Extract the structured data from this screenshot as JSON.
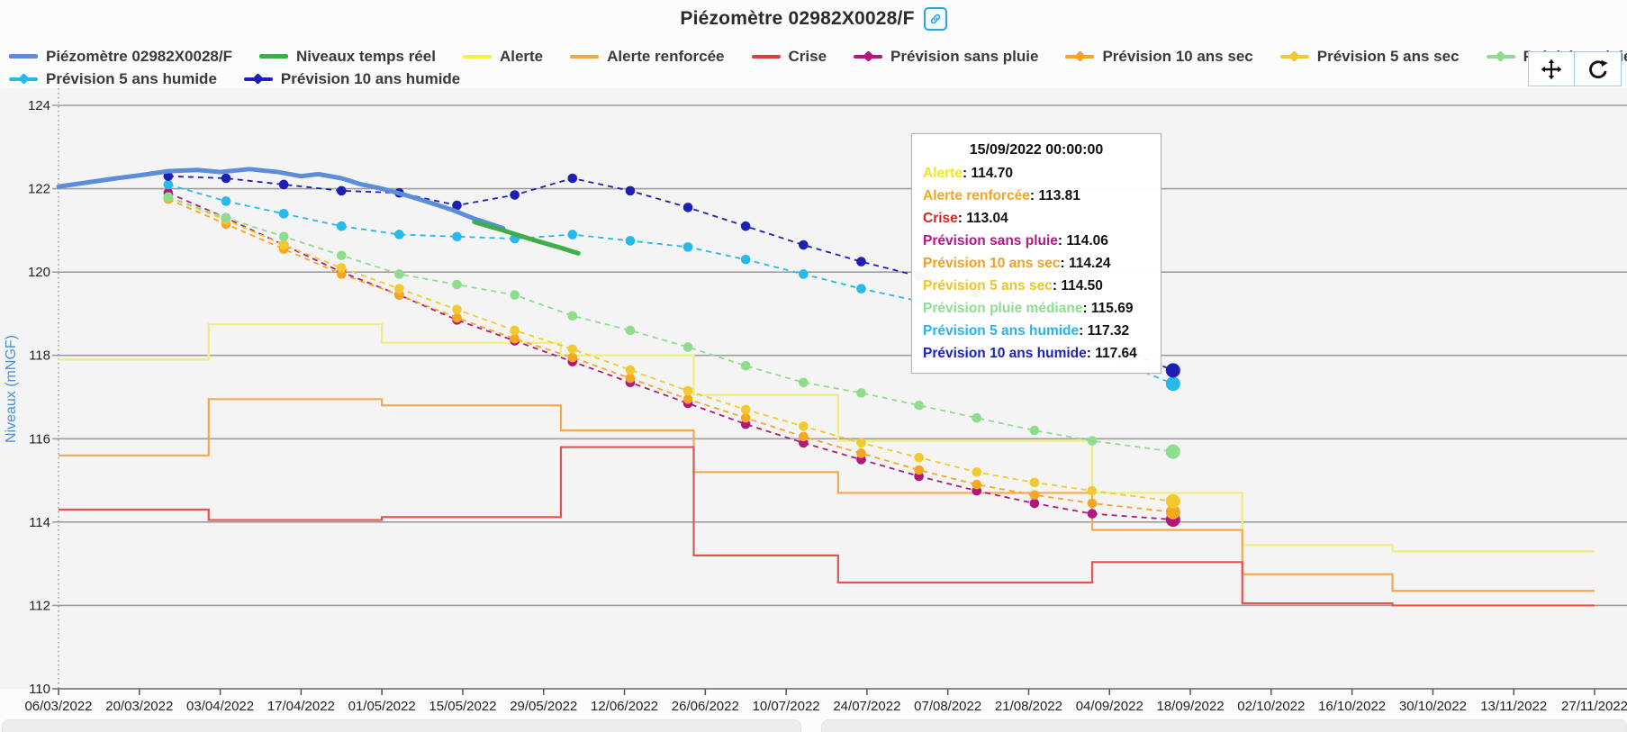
{
  "header": {
    "title": "Piézomètre 02982X0028/F"
  },
  "legend": {
    "rows": [
      [
        {
          "label": "Piézomètre 02982X0028/F",
          "color": "#5b8dd9",
          "swatch": "thick-line"
        },
        {
          "label": "Niveaux temps réel",
          "color": "#3fae49",
          "swatch": "thick-line"
        },
        {
          "label": "Alerte",
          "color": "#f3f33c",
          "swatch": "line"
        },
        {
          "label": "Alerte renforcée",
          "color": "#f2a93b",
          "swatch": "line"
        },
        {
          "label": "Crise",
          "color": "#e23b3b",
          "swatch": "line"
        },
        {
          "label": "Prévision sans pluie",
          "color": "#b01880",
          "swatch": "line-marker"
        },
        {
          "label": "Prévision 10 ans sec",
          "color": "#f6a623",
          "swatch": "line-marker"
        },
        {
          "label": "Prévision 5 ans sec",
          "color": "#f2c92f",
          "swatch": "line-marker"
        },
        {
          "label": "Prévision pluie médiane",
          "color": "#8fdc8f",
          "swatch": "line-marker"
        }
      ],
      [
        {
          "label": "Prévision 5 ans humide",
          "color": "#27b9ea",
          "swatch": "line-marker"
        },
        {
          "label": "Prévision 10 ans humide",
          "color": "#1f1fb4",
          "swatch": "line-marker"
        }
      ]
    ]
  },
  "modebar": {
    "buttons": [
      {
        "name": "pan",
        "label": "Pan"
      },
      {
        "name": "reset",
        "label": "Reset view"
      }
    ]
  },
  "tooltip": {
    "title": "15/09/2022 00:00:00",
    "rows": [
      {
        "label": "Alerte",
        "value": "114.70",
        "color": "#f0e714"
      },
      {
        "label": "Alerte renforcée",
        "value": "113.81",
        "color": "#f5a623"
      },
      {
        "label": "Crise",
        "value": "113.04",
        "color": "#e02020"
      },
      {
        "label": "Prévision sans pluie",
        "value": "114.06",
        "color": "#b0188a"
      },
      {
        "label": "Prévision 10 ans sec",
        "value": "114.24",
        "color": "#f0a028"
      },
      {
        "label": "Prévision 5 ans sec",
        "value": "114.50",
        "color": "#ecc626"
      },
      {
        "label": "Prévision pluie médiane",
        "value": "115.69",
        "color": "#90dc90"
      },
      {
        "label": "Prévision 5 ans humide",
        "value": "117.32",
        "color": "#28b4e8"
      },
      {
        "label": "Prévision 10 ans humide",
        "value": "117.64",
        "color": "#1e22b4"
      }
    ]
  },
  "chart_data": {
    "type": "line",
    "title": "Piézomètre 02982X0028/F",
    "ylabel": "Niveaux (mNGF)",
    "ylim": [
      110,
      124
    ],
    "y_ticks": [
      124,
      122,
      120,
      118,
      116,
      114,
      112,
      110
    ],
    "x_unit": "days since 06/03/2022",
    "x_tick_labels": [
      "06/03/2022",
      "20/03/2022",
      "03/04/2022",
      "17/04/2022",
      "01/05/2022",
      "15/05/2022",
      "29/05/2022",
      "12/06/2022",
      "26/06/2022",
      "10/07/2022",
      "24/07/2022",
      "07/08/2022",
      "21/08/2022",
      "04/09/2022",
      "18/09/2022",
      "02/10/2022",
      "16/10/2022",
      "30/10/2022",
      "13/11/2022",
      "27/11/2022"
    ],
    "x_tick_days": [
      0,
      14,
      28,
      42,
      56,
      70,
      84,
      98,
      112,
      126,
      140,
      154,
      168,
      182,
      196,
      210,
      224,
      238,
      252,
      266
    ],
    "grid": true,
    "legend_position": "top-left",
    "hover_day": 193,
    "series": [
      {
        "name": "Alerte",
        "type": "step",
        "color": "#eeee7e",
        "segments": [
          [
            0,
            26,
            117.9
          ],
          [
            26,
            56,
            118.75
          ],
          [
            56,
            87,
            118.3
          ],
          [
            87,
            110,
            118.0
          ],
          [
            110,
            135,
            117.05
          ],
          [
            135,
            179,
            115.95
          ],
          [
            179,
            205,
            114.7
          ],
          [
            205,
            231,
            113.45
          ],
          [
            231,
            266,
            113.3
          ]
        ]
      },
      {
        "name": "Alerte renforcée",
        "type": "step",
        "color": "#f3a94e",
        "segments": [
          [
            0,
            26,
            115.6
          ],
          [
            26,
            56,
            116.95
          ],
          [
            56,
            87,
            116.8
          ],
          [
            87,
            110,
            116.2
          ],
          [
            110,
            135,
            115.2
          ],
          [
            135,
            179,
            114.7
          ],
          [
            179,
            205,
            113.81
          ],
          [
            205,
            231,
            112.75
          ],
          [
            231,
            266,
            112.35
          ]
        ]
      },
      {
        "name": "Crise",
        "type": "step",
        "color": "#e25555",
        "segments": [
          [
            0,
            26,
            114.3
          ],
          [
            26,
            56,
            114.05
          ],
          [
            56,
            87,
            114.12
          ],
          [
            87,
            110,
            115.8
          ],
          [
            110,
            135,
            113.2
          ],
          [
            135,
            179,
            112.55
          ],
          [
            179,
            205,
            113.04
          ],
          [
            205,
            231,
            112.05
          ],
          [
            231,
            266,
            112.0
          ]
        ]
      },
      {
        "name": "Prévision sans pluie",
        "type": "forecast",
        "color": "#b01880",
        "x": [
          19,
          29,
          39,
          49,
          59,
          69,
          79,
          89,
          99,
          109,
          119,
          129,
          139,
          149,
          159,
          169,
          179
        ],
        "y": [
          121.9,
          121.3,
          120.65,
          120.0,
          119.45,
          118.85,
          118.35,
          117.85,
          117.35,
          116.85,
          116.35,
          115.9,
          115.5,
          115.1,
          114.75,
          114.45,
          114.2
        ],
        "final": {
          "x": 193,
          "y": 114.06
        }
      },
      {
        "name": "Prévision 10 ans sec",
        "type": "forecast",
        "color": "#f6a623",
        "x": [
          19,
          29,
          39,
          49,
          59,
          69,
          79,
          89,
          99,
          109,
          119,
          129,
          139,
          149,
          159,
          169,
          179
        ],
        "y": [
          121.75,
          121.15,
          120.55,
          119.95,
          119.45,
          118.9,
          118.4,
          117.95,
          117.45,
          116.95,
          116.5,
          116.05,
          115.65,
          115.25,
          114.9,
          114.65,
          114.45
        ],
        "final": {
          "x": 193,
          "y": 114.24
        }
      },
      {
        "name": "Prévision 5 ans sec",
        "type": "forecast",
        "color": "#f2c92f",
        "x": [
          19,
          29,
          39,
          49,
          59,
          69,
          79,
          89,
          99,
          109,
          119,
          129,
          139,
          149,
          159,
          169,
          179
        ],
        "y": [
          121.8,
          121.25,
          120.65,
          120.1,
          119.6,
          119.1,
          118.6,
          118.15,
          117.65,
          117.15,
          116.7,
          116.3,
          115.9,
          115.55,
          115.2,
          114.95,
          114.75
        ],
        "final": {
          "x": 193,
          "y": 114.5
        }
      },
      {
        "name": "Prévision pluie médiane",
        "type": "forecast",
        "color": "#8fdc8f",
        "x": [
          19,
          29,
          39,
          49,
          59,
          69,
          79,
          89,
          99,
          109,
          119,
          129,
          139,
          149,
          159,
          169,
          179
        ],
        "y": [
          121.8,
          121.3,
          120.85,
          120.4,
          119.95,
          119.7,
          119.45,
          118.95,
          118.6,
          118.2,
          117.75,
          117.35,
          117.1,
          116.8,
          116.5,
          116.2,
          115.95
        ],
        "final": {
          "x": 193,
          "y": 115.69
        }
      },
      {
        "name": "Prévision 5 ans humide",
        "type": "forecast",
        "color": "#27b9ea",
        "x": [
          19,
          29,
          39,
          49,
          59,
          69,
          79,
          89,
          99,
          109,
          119,
          129,
          139,
          149,
          159,
          169,
          179
        ],
        "y": [
          122.1,
          121.7,
          121.4,
          121.1,
          120.9,
          120.85,
          120.8,
          120.9,
          120.75,
          120.6,
          120.3,
          119.95,
          119.6,
          119.3,
          118.95,
          118.55,
          118.1
        ],
        "final": {
          "x": 193,
          "y": 117.32
        }
      },
      {
        "name": "Prévision 10 ans humide",
        "type": "forecast",
        "color": "#1f1fb4",
        "x": [
          19,
          29,
          39,
          49,
          59,
          69,
          79,
          89,
          99,
          109,
          119,
          129,
          139,
          149,
          159,
          169,
          179
        ],
        "y": [
          122.3,
          122.25,
          122.1,
          121.95,
          121.9,
          121.6,
          121.85,
          122.25,
          121.95,
          121.55,
          121.1,
          120.65,
          120.25,
          119.9,
          119.5,
          119.0,
          118.45
        ],
        "final": {
          "x": 193,
          "y": 117.64
        }
      },
      {
        "name": "Piézomètre 02982X0028/F",
        "type": "solid",
        "color": "#5b8dd9",
        "width": 5,
        "x": [
          0,
          5,
          10,
          14,
          19,
          24,
          28,
          33,
          38,
          42,
          45,
          49,
          52,
          56,
          60,
          64,
          68,
          72,
          77
        ],
        "y": [
          122.05,
          122.15,
          122.25,
          122.32,
          122.42,
          122.45,
          122.4,
          122.47,
          122.4,
          122.3,
          122.35,
          122.25,
          122.12,
          122.0,
          121.85,
          121.68,
          121.5,
          121.28,
          121.05
        ]
      },
      {
        "name": "Niveaux temps réel",
        "type": "solid",
        "color": "#3fae49",
        "width": 5,
        "x": [
          72,
          77,
          82,
          87,
          90
        ],
        "y": [
          121.2,
          121.0,
          120.78,
          120.58,
          120.45
        ]
      }
    ]
  }
}
